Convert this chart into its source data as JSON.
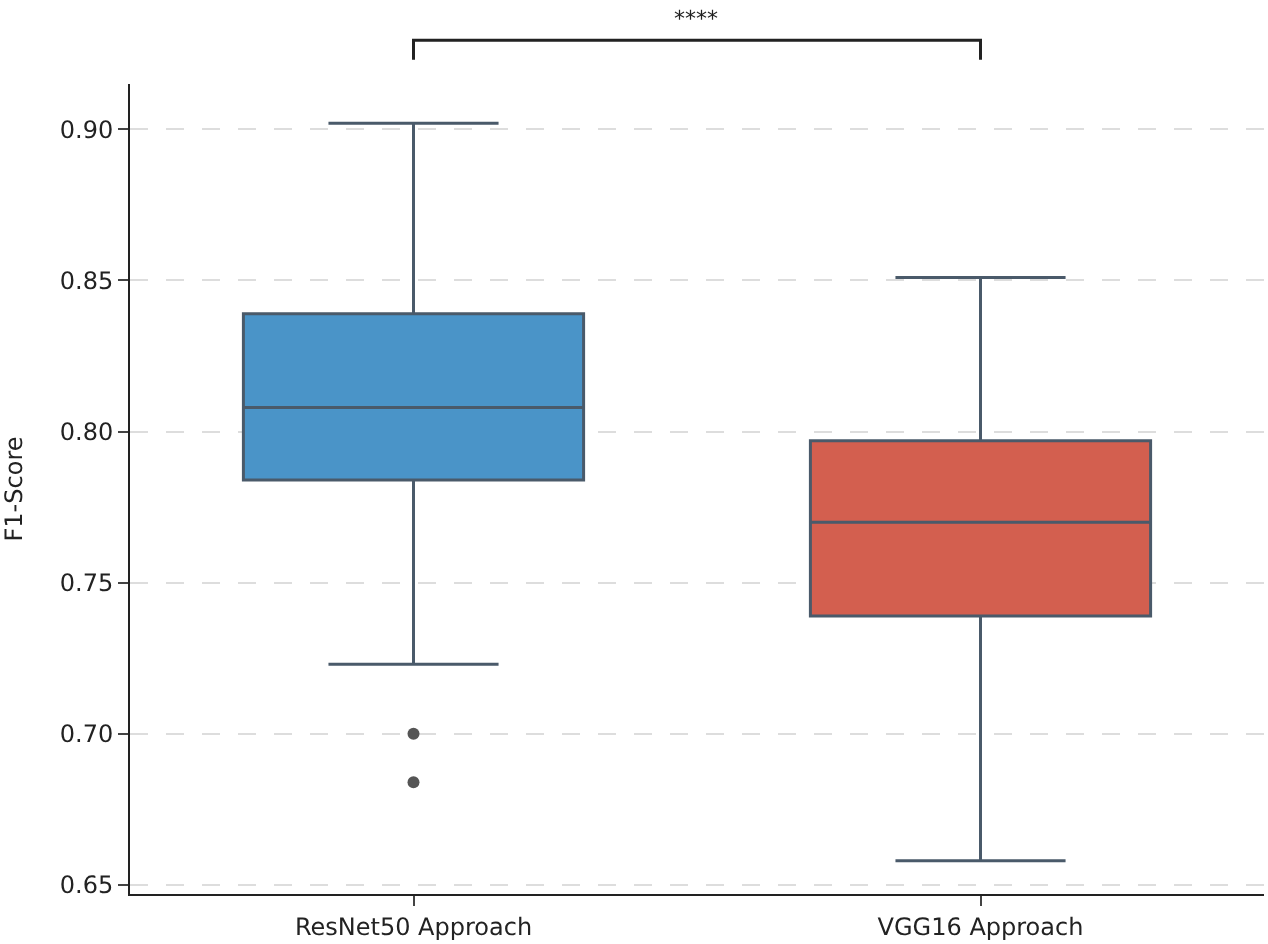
{
  "chart_data": {
    "type": "box",
    "ylabel": "F1-Score",
    "categories": [
      "ResNet50 Approach",
      "VGG16 Approach"
    ],
    "colors": [
      "#4a94c8",
      "#d35f4f"
    ],
    "boxes": [
      {
        "low": 0.723,
        "q1": 0.784,
        "median": 0.808,
        "q3": 0.839,
        "high": 0.902,
        "outliers": [
          0.7,
          0.684
        ]
      },
      {
        "low": 0.658,
        "q1": 0.739,
        "median": 0.77,
        "q3": 0.797,
        "high": 0.851
      }
    ],
    "ylim": [
      0.647,
      0.915
    ],
    "yticks": [
      {
        "value": 0.65,
        "label": "0.65"
      },
      {
        "value": 0.7,
        "label": "0.70"
      },
      {
        "value": 0.75,
        "label": "0.75"
      },
      {
        "value": 0.8,
        "label": "0.80"
      },
      {
        "value": 0.85,
        "label": "0.85"
      },
      {
        "value": 0.9,
        "label": "0.90"
      }
    ],
    "grid": "y",
    "annotations": [
      "****"
    ]
  }
}
